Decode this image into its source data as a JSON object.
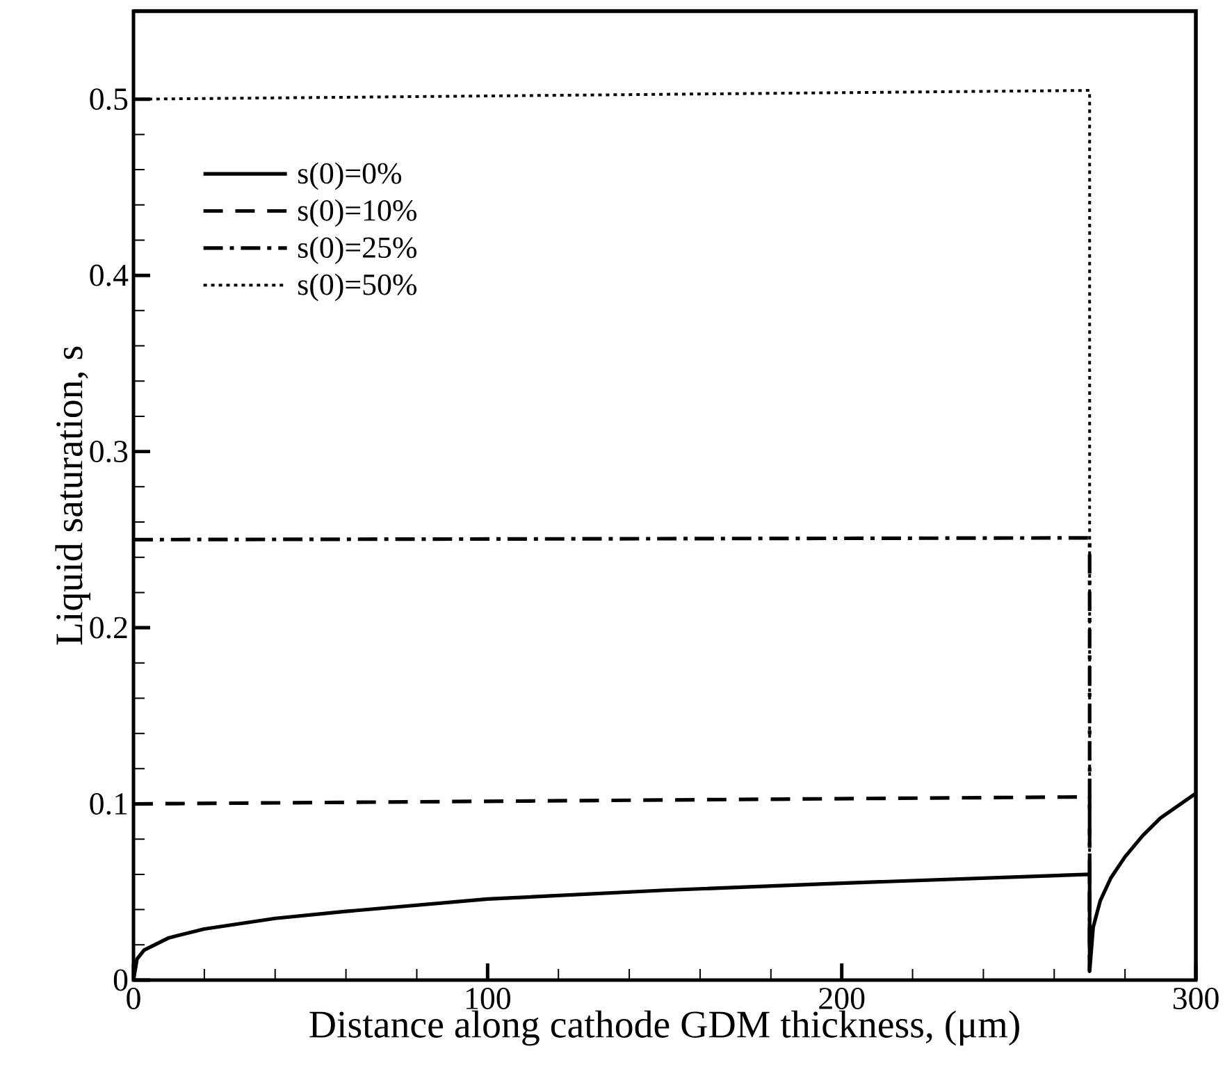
{
  "chart_data": {
    "type": "line",
    "xlabel": "Distance along cathode GDM thickness, (μm)",
    "ylabel": "Liquid saturation, s",
    "xlim": [
      0,
      300
    ],
    "ylim": [
      0,
      0.55
    ],
    "xticks": [
      0,
      100,
      200,
      300
    ],
    "yticks": [
      0,
      0.1,
      0.2,
      0.3,
      0.4,
      0.5
    ],
    "grid": false,
    "legend": "top left",
    "marker": "none",
    "series": [
      {
        "name": "s(0)=0%",
        "color": "#000000",
        "line_style": "solid",
        "x": [
          0,
          1,
          3,
          10,
          20,
          40,
          60,
          100,
          150,
          200,
          270,
          270,
          271,
          273,
          276,
          280,
          285,
          290,
          295,
          300
        ],
        "values": [
          0,
          0.012,
          0.017,
          0.024,
          0.029,
          0.035,
          0.039,
          0.046,
          0.051,
          0.055,
          0.06,
          0.005,
          0.03,
          0.045,
          0.058,
          0.07,
          0.082,
          0.092,
          0.099,
          0.106
        ]
      },
      {
        "name": "s(0)=10%",
        "color": "#000000",
        "line_style": "dashed",
        "x": [
          0,
          270,
          270
        ],
        "values": [
          0.1,
          0.104,
          0.005
        ]
      },
      {
        "name": "s(0)=25%",
        "color": "#000000",
        "line_style": "dashdot",
        "x": [
          0,
          270,
          270
        ],
        "values": [
          0.25,
          0.251,
          0.005
        ]
      },
      {
        "name": "s(0)=50%",
        "color": "#000000",
        "line_style": "dotted",
        "x": [
          0,
          270,
          270
        ],
        "values": [
          0.5,
          0.505,
          0.005
        ]
      }
    ]
  }
}
